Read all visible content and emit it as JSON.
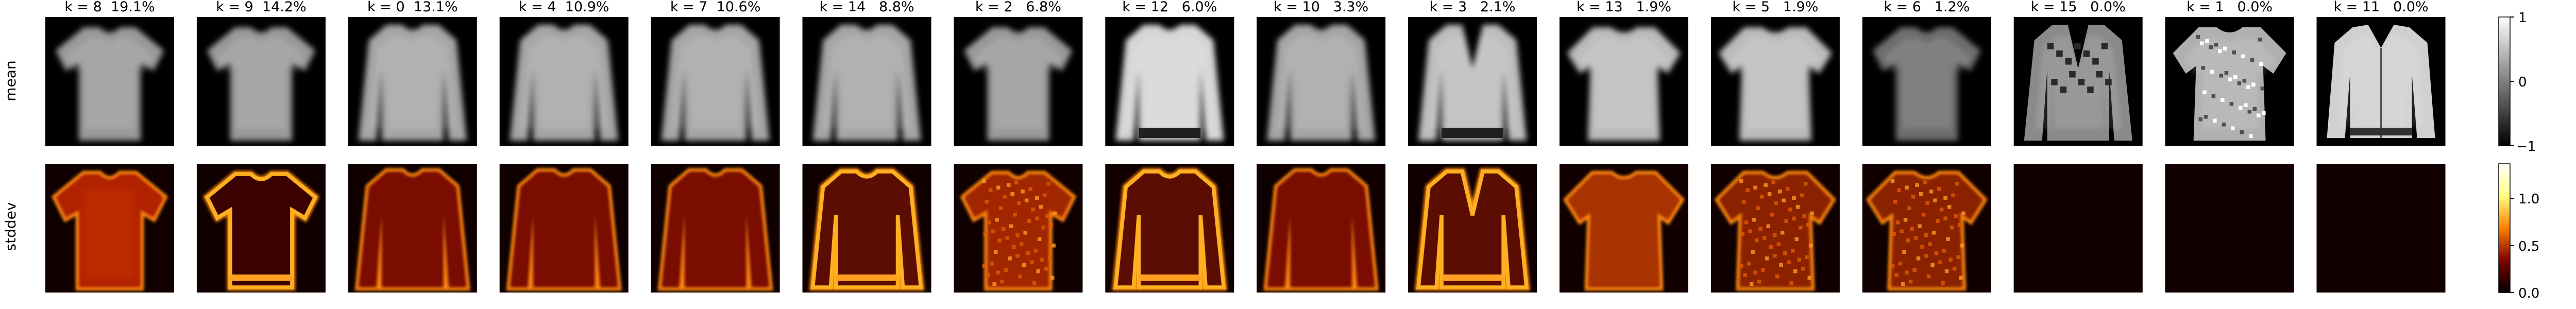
{
  "rows": [
    {
      "label": "mean"
    },
    {
      "label": "stddev"
    }
  ],
  "panels": [
    {
      "title": "k = 8  19.1%",
      "k": 8,
      "percent": 19.1,
      "mean_kind": "tshirt",
      "std_kind": "tshirt"
    },
    {
      "title": "k = 9  14.2%",
      "k": 9,
      "percent": 14.2,
      "mean_kind": "tshirt",
      "std_kind": "tshirt_outline"
    },
    {
      "title": "k = 0  13.1%",
      "k": 0,
      "percent": 13.1,
      "mean_kind": "longsleeve",
      "std_kind": "longsleeve"
    },
    {
      "title": "k = 4  10.9%",
      "k": 4,
      "percent": 10.9,
      "mean_kind": "longsleeve",
      "std_kind": "longsleeve"
    },
    {
      "title": "k = 7  10.6%",
      "k": 7,
      "percent": 10.6,
      "mean_kind": "longsleeve",
      "std_kind": "longsleeve"
    },
    {
      "title": "k = 14   8.8%",
      "k": 14,
      "percent": 8.8,
      "mean_kind": "longsleeve",
      "std_kind": "longsleeve_bright"
    },
    {
      "title": "k = 2   6.8%",
      "k": 2,
      "percent": 6.8,
      "mean_kind": "tshirt",
      "std_kind": "tshirt_noisy"
    },
    {
      "title": "k = 12   6.0%",
      "k": 12,
      "percent": 6.0,
      "mean_kind": "longsleeve_bright",
      "std_kind": "longsleeve_bright"
    },
    {
      "title": "k = 10   3.3%",
      "k": 10,
      "percent": 3.3,
      "mean_kind": "longsleeve",
      "std_kind": "longsleeve"
    },
    {
      "title": "k = 3   2.1%",
      "k": 3,
      "percent": 2.1,
      "mean_kind": "cardigan",
      "std_kind": "cardigan"
    },
    {
      "title": "k = 13   1.9%",
      "k": 13,
      "percent": 1.9,
      "mean_kind": "tshirt_wide",
      "std_kind": "tshirt_wide"
    },
    {
      "title": "k = 5   1.9%",
      "k": 5,
      "percent": 1.9,
      "mean_kind": "tshirt_wide",
      "std_kind": "blob_noisy"
    },
    {
      "title": "k = 6   1.2%",
      "k": 6,
      "percent": 1.2,
      "mean_kind": "tshirt_dim",
      "std_kind": "blob_noisy"
    },
    {
      "title": "k = 15   0.0%",
      "k": 15,
      "percent": 0.0,
      "mean_kind": "single_patterned",
      "std_kind": "empty"
    },
    {
      "title": "k = 1   0.0%",
      "k": 1,
      "percent": 0.0,
      "mean_kind": "single_noisy",
      "std_kind": "empty"
    },
    {
      "title": "k = 11   0.0%",
      "k": 11,
      "percent": 0.0,
      "mean_kind": "single_jacket",
      "std_kind": "empty"
    }
  ],
  "colorbars": [
    {
      "row": "mean",
      "colormap": "gray",
      "ticks": [
        "1",
        "0",
        "−1"
      ],
      "range": [
        -1,
        1
      ]
    },
    {
      "row": "stddev",
      "colormap": "afmhot",
      "ticks": [
        "1.0",
        "0.5",
        "0.0"
      ],
      "range": [
        0,
        1.25
      ]
    }
  ],
  "colors": {
    "background": "#ffffff",
    "text": "#000000",
    "panel_background": "#000000"
  }
}
